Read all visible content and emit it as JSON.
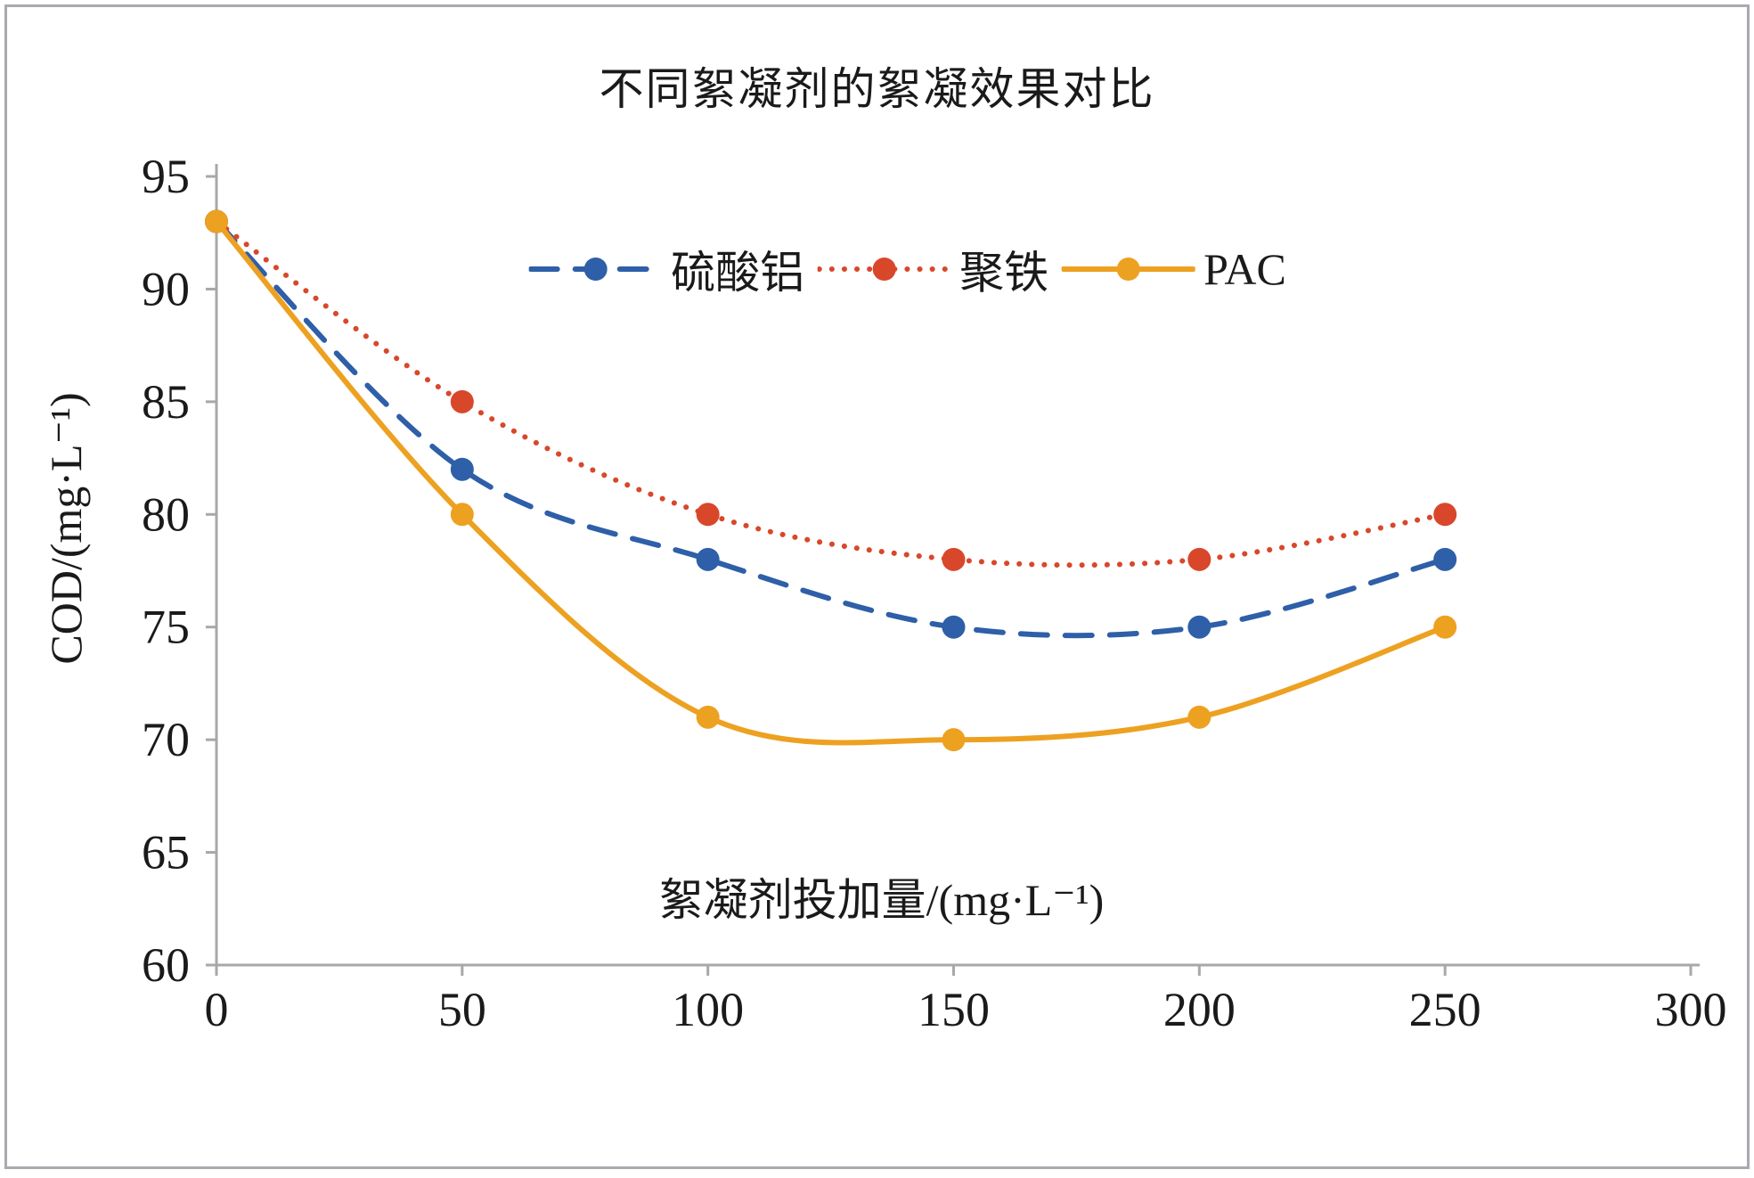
{
  "chart_data": {
    "type": "line",
    "title": "不同絮凝剂的絮凝效果对比",
    "xlabel": "絮凝剂投加量/(mg·L⁻¹)",
    "ylabel": "COD/(mg·L⁻¹)",
    "x": [
      0,
      50,
      100,
      150,
      200,
      250
    ],
    "xlim": [
      0,
      300
    ],
    "ylim": [
      60,
      95
    ],
    "x_ticks": [
      0,
      50,
      100,
      150,
      200,
      250,
      300
    ],
    "y_ticks": [
      60,
      65,
      70,
      75,
      80,
      85,
      90,
      95
    ],
    "grid": false,
    "legend_position": "top-center-inside",
    "series": [
      {
        "name": "硫酸铝",
        "color": "#2e5fa8",
        "line_style": "dashed",
        "values": [
          93,
          82,
          78,
          75,
          75,
          78
        ]
      },
      {
        "name": "聚铁",
        "color": "#d9472b",
        "line_style": "dotted",
        "values": [
          93,
          85,
          80,
          78,
          78,
          80
        ]
      },
      {
        "name": "PAC",
        "color": "#eda121",
        "line_style": "solid",
        "values": [
          93,
          80,
          71,
          70,
          71,
          75
        ]
      }
    ],
    "axis_color": "#a8a8a8",
    "text_color": "#1a1a1a"
  }
}
